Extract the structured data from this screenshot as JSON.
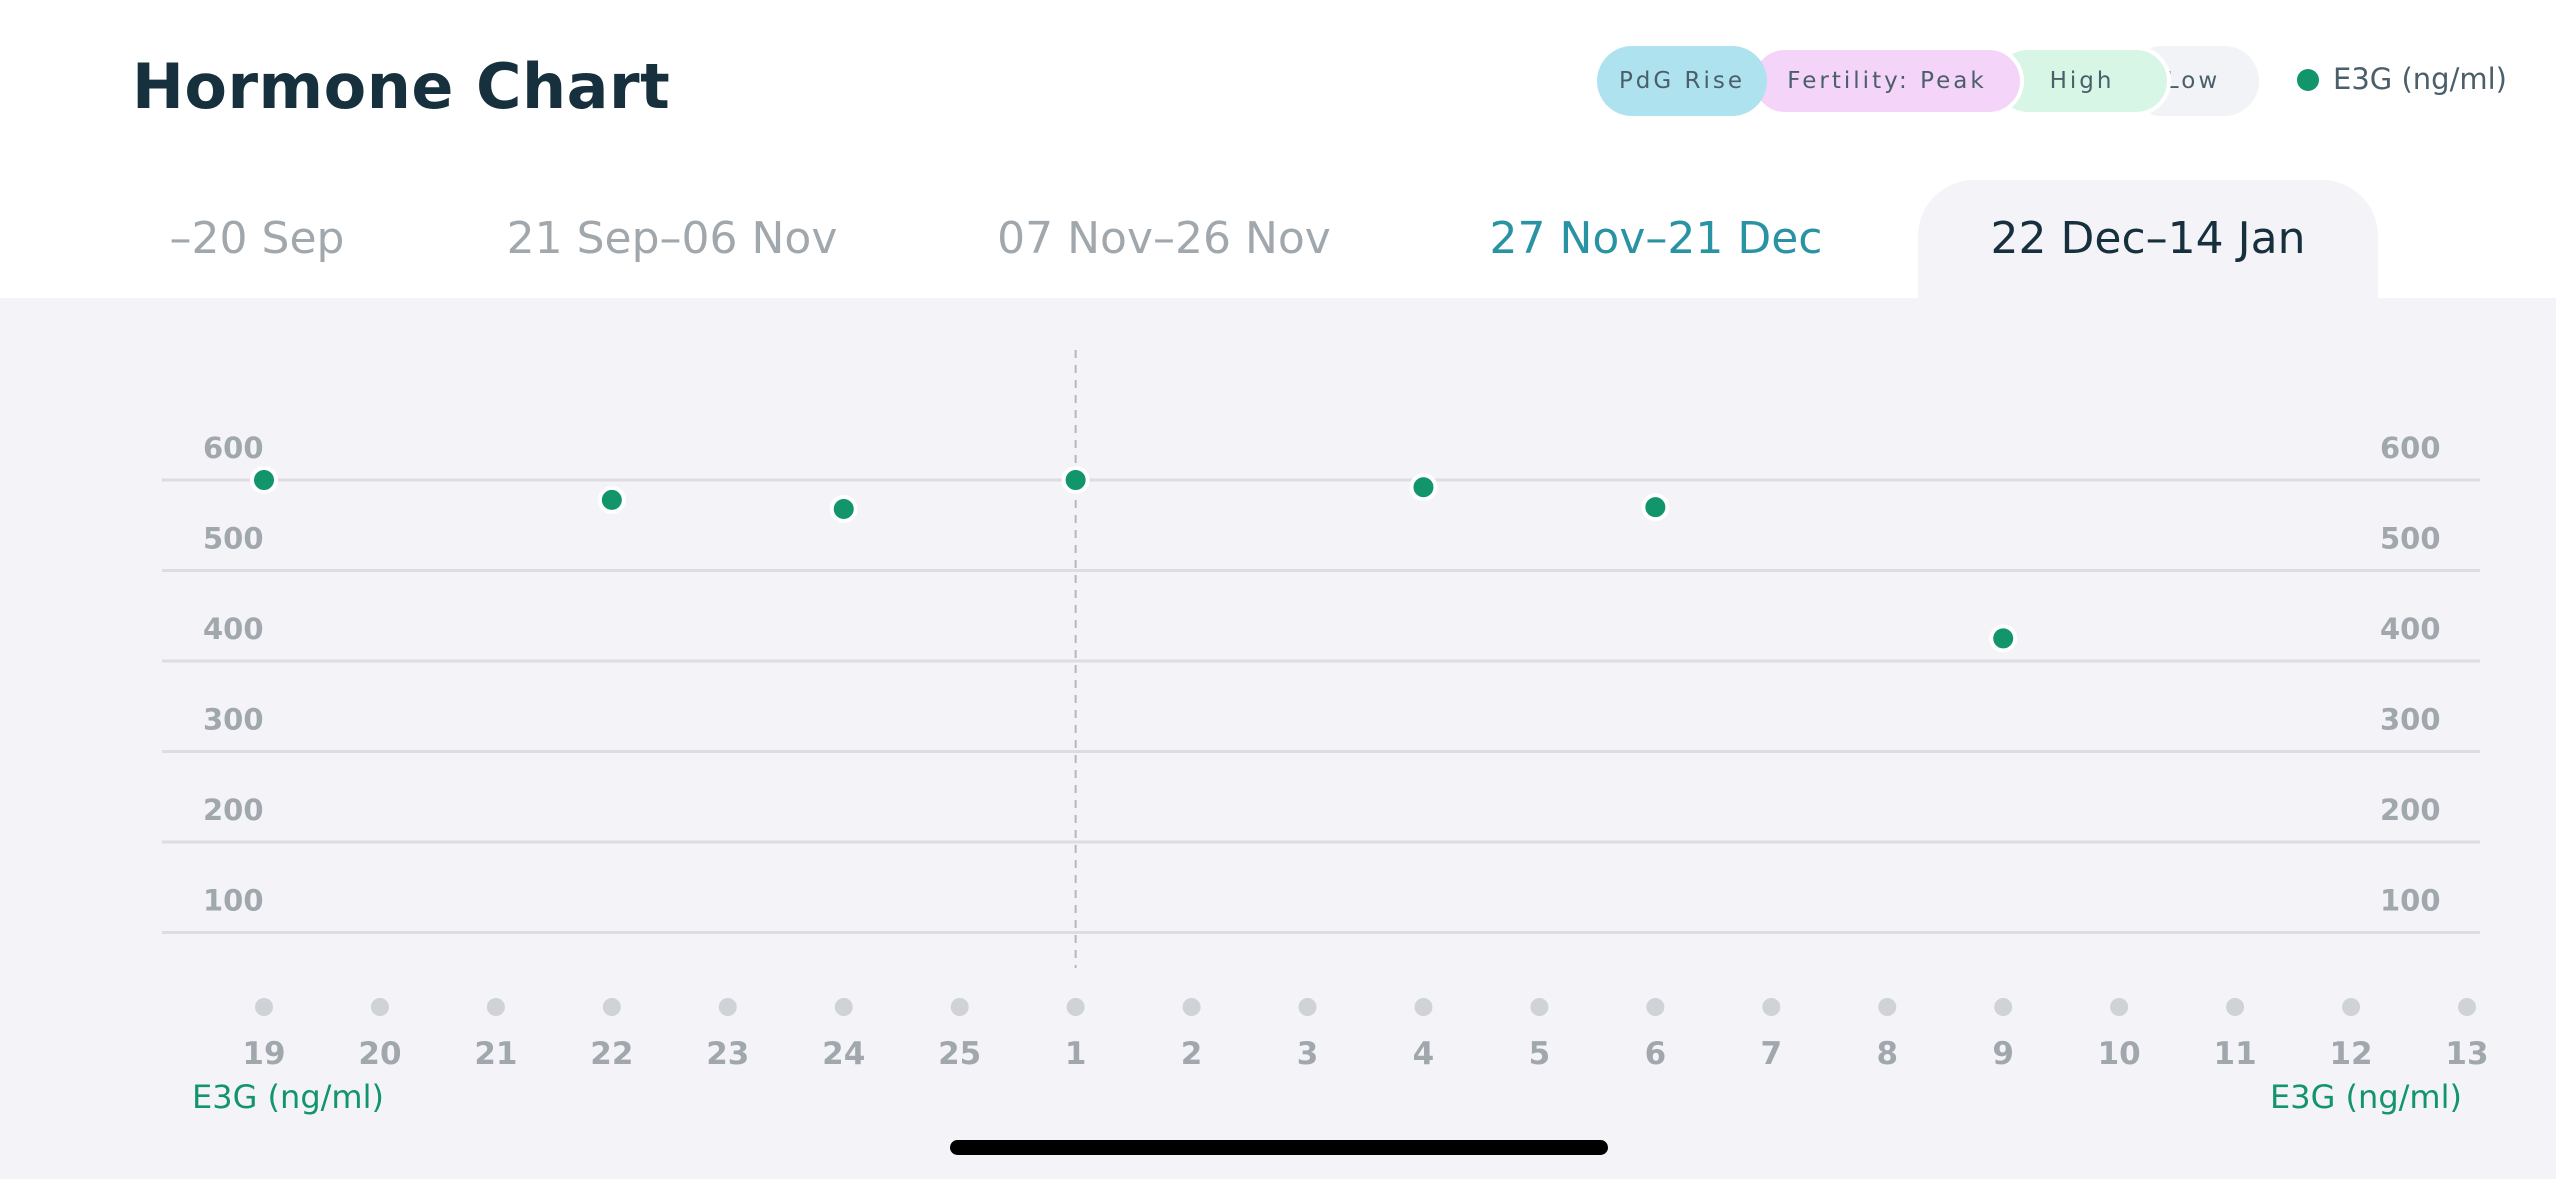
{
  "header": {
    "title": "Hormone Chart"
  },
  "legend": {
    "pills": {
      "pdg": "PdG Rise",
      "peak": "Fertility: Peak",
      "high": "High",
      "low": "Low"
    },
    "series_label": "E3G (ng/ml)"
  },
  "tabs": [
    {
      "label": "–20 Sep"
    },
    {
      "label": "21 Sep–06 Nov"
    },
    {
      "label": "07 Nov–26 Nov"
    },
    {
      "label": "27 Nov–21 Dec"
    },
    {
      "label": "22 Dec–14 Jan"
    }
  ],
  "active_tab": 4,
  "colors": {
    "series": "#12956b",
    "title": "#17303d",
    "accent_tab": "#2a93a3",
    "pdg": "#aee2ef",
    "peak": "#f4d4f8",
    "high": "#d7f6e6",
    "low": "#f2f3f6"
  },
  "chart_data": {
    "type": "scatter",
    "categories": [
      "19",
      "20",
      "21",
      "22",
      "23",
      "24",
      "25",
      "1",
      "2",
      "3",
      "4",
      "5",
      "6",
      "7",
      "8",
      "9",
      "10",
      "11",
      "12",
      "13"
    ],
    "series": [
      {
        "name": "E3G (ng/ml)",
        "points": [
          {
            "x": "19",
            "y": 600
          },
          {
            "x": "22",
            "y": 578
          },
          {
            "x": "24",
            "y": 568
          },
          {
            "x": "1",
            "y": 600
          },
          {
            "x": "4",
            "y": 592
          },
          {
            "x": "6",
            "y": 570
          },
          {
            "x": "9",
            "y": 425
          }
        ]
      }
    ],
    "y_ticks": [
      100,
      200,
      300,
      400,
      500,
      600
    ],
    "ylim": [
      0,
      600
    ],
    "ylabel_left": "E3G (ng/ml)",
    "ylabel_right": "E3G (ng/ml)",
    "marker_line_at": "1",
    "grid": true
  }
}
